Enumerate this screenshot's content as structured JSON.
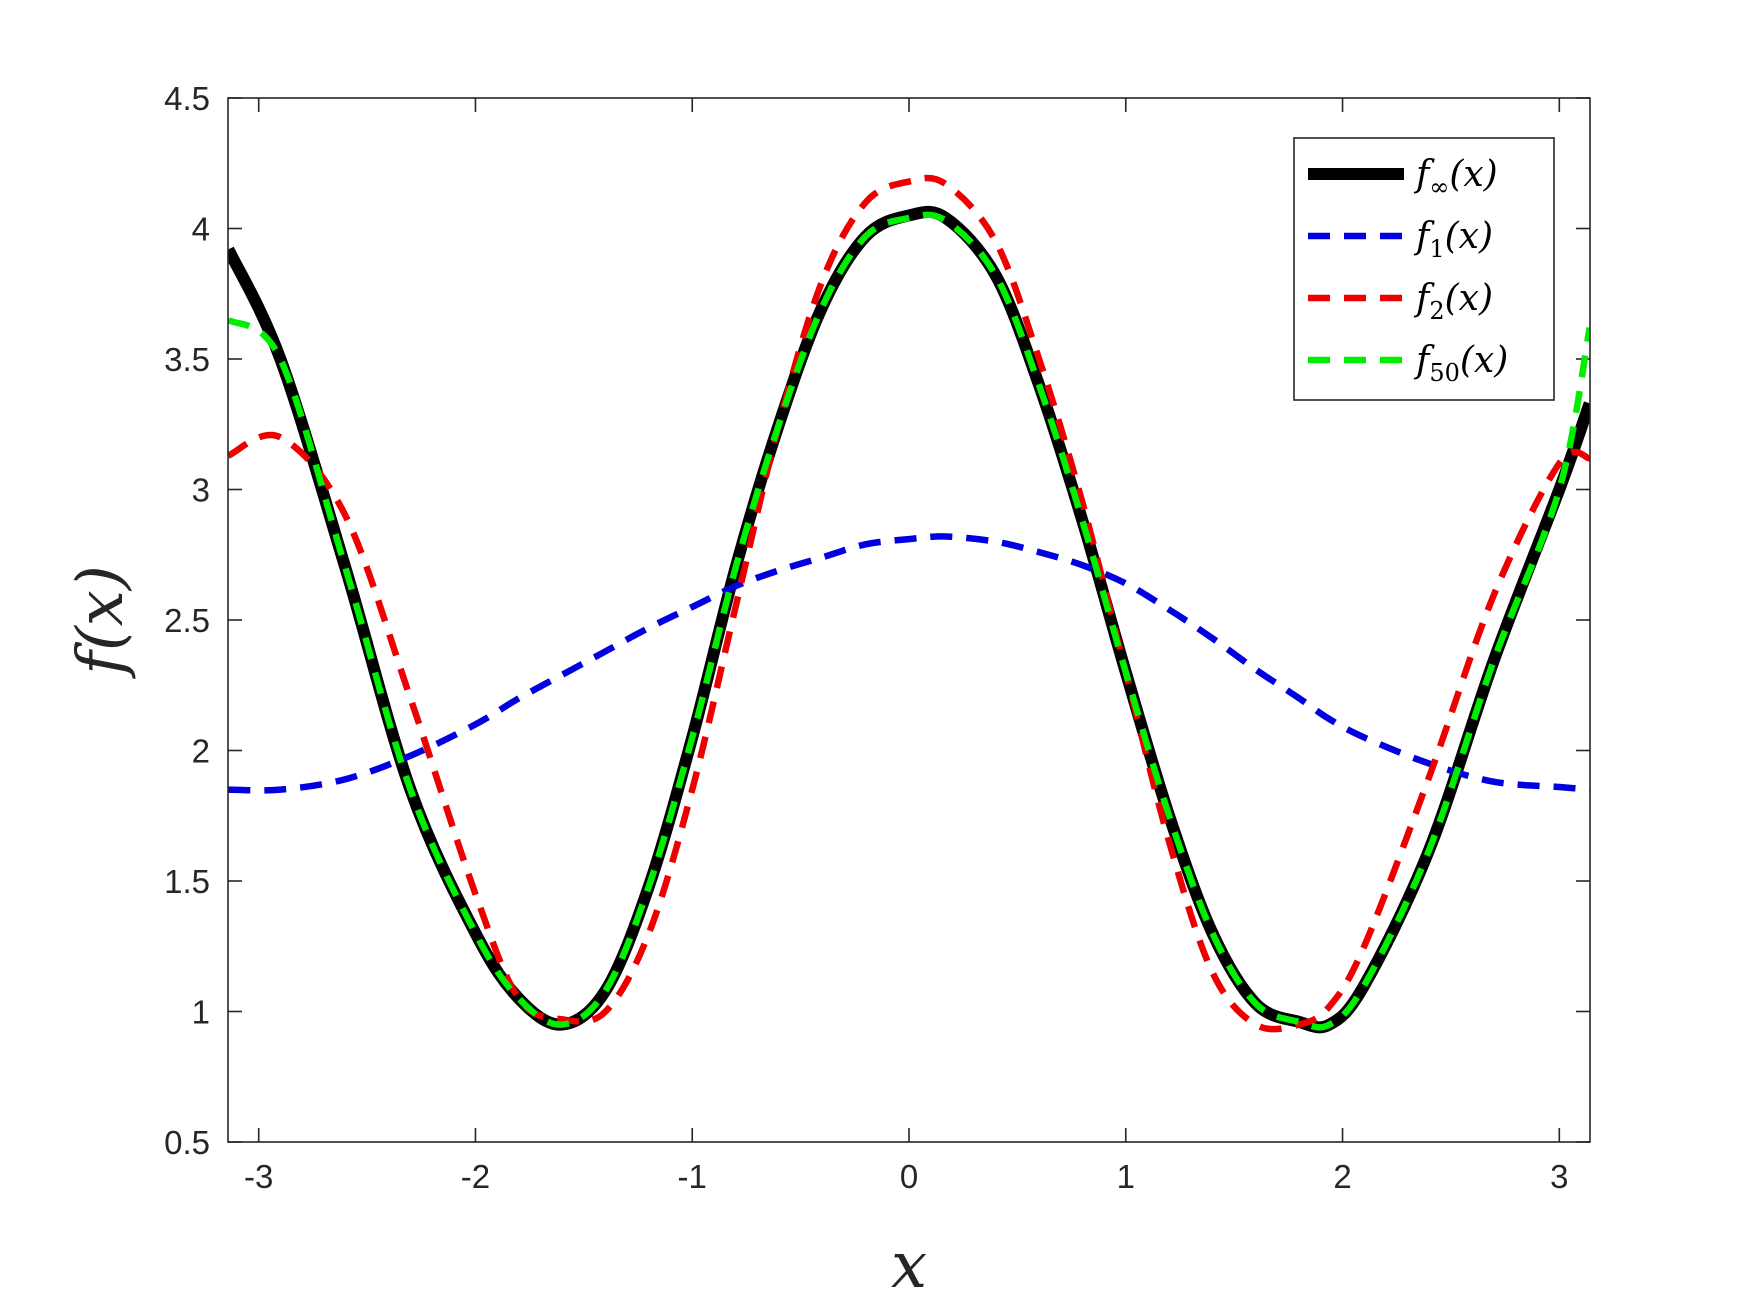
{
  "chart_data": {
    "type": "line",
    "xlabel": "x",
    "ylabel": "f(x)",
    "xlim": [
      -3.14159,
      3.14159
    ],
    "ylim": [
      0.5,
      4.5
    ],
    "xticks": [
      -3,
      -2,
      -1,
      0,
      1,
      2,
      3
    ],
    "xtick_labels": [
      "-3",
      "-2",
      "-1",
      "0",
      "1",
      "2",
      "3"
    ],
    "yticks": [
      0.5,
      1,
      1.5,
      2,
      2.5,
      3,
      3.5,
      4,
      4.5
    ],
    "ytick_labels": [
      "0.5",
      "1",
      "1.5",
      "2",
      "2.5",
      "3",
      "3.5",
      "4",
      "4.5"
    ],
    "grid": false,
    "legend_position": "top-right",
    "x": [
      -3.14,
      -2.9,
      -2.6,
      -2.3,
      -2.0,
      -1.8,
      -1.6,
      -1.4,
      -1.2,
      -1.0,
      -0.8,
      -0.6,
      -0.4,
      -0.2,
      0.0,
      0.17,
      0.4,
      0.6,
      0.8,
      1.0,
      1.2,
      1.4,
      1.6,
      1.8,
      1.94,
      2.1,
      2.4,
      2.7,
      3.0,
      3.14
    ],
    "series": [
      {
        "name": "f_∞(x)",
        "name_main": "f",
        "name_sub": "∞",
        "name_tail": "(x)",
        "color": "#000000",
        "style": "solid",
        "values": [
          3.92,
          3.5,
          2.7,
          1.85,
          1.3,
          1.05,
          0.95,
          1.08,
          1.48,
          2.05,
          2.7,
          3.25,
          3.7,
          3.97,
          4.05,
          4.04,
          3.82,
          3.4,
          2.88,
          2.3,
          1.75,
          1.3,
          1.03,
          0.96,
          0.95,
          1.1,
          1.62,
          2.35,
          3.0,
          3.33
        ]
      },
      {
        "name": "f_1(x)",
        "name_main": "f",
        "name_sub": "1",
        "name_tail": "(x)",
        "color": "#0000e0",
        "style": "dashed",
        "values": [
          1.85,
          1.85,
          1.89,
          1.98,
          2.1,
          2.2,
          2.29,
          2.38,
          2.47,
          2.55,
          2.63,
          2.69,
          2.74,
          2.79,
          2.81,
          2.82,
          2.8,
          2.76,
          2.71,
          2.64,
          2.54,
          2.43,
          2.31,
          2.2,
          2.12,
          2.05,
          1.95,
          1.88,
          1.86,
          1.85
        ]
      },
      {
        "name": "f_2(x)",
        "name_main": "f",
        "name_sub": "2",
        "name_tail": "(x)",
        "color": "#ee0000",
        "style": "dashed",
        "values": [
          3.13,
          3.2,
          2.9,
          2.2,
          1.45,
          1.05,
          0.97,
          1.0,
          1.3,
          1.85,
          2.55,
          3.25,
          3.8,
          4.1,
          4.18,
          4.17,
          3.95,
          3.5,
          2.95,
          2.3,
          1.65,
          1.15,
          0.95,
          0.95,
          1.02,
          1.25,
          1.9,
          2.6,
          3.1,
          3.12
        ]
      },
      {
        "name": "f_50(x)",
        "name_main": "f",
        "name_sub": "50",
        "name_tail": "(x)",
        "color": "#00ee00",
        "style": "dashed",
        "values": [
          3.65,
          3.5,
          2.7,
          1.85,
          1.3,
          1.05,
          0.95,
          1.08,
          1.48,
          2.05,
          2.7,
          3.25,
          3.7,
          3.97,
          4.04,
          4.03,
          3.82,
          3.4,
          2.88,
          2.3,
          1.75,
          1.3,
          1.03,
          0.96,
          0.95,
          1.1,
          1.62,
          2.35,
          3.0,
          3.62
        ]
      }
    ]
  }
}
